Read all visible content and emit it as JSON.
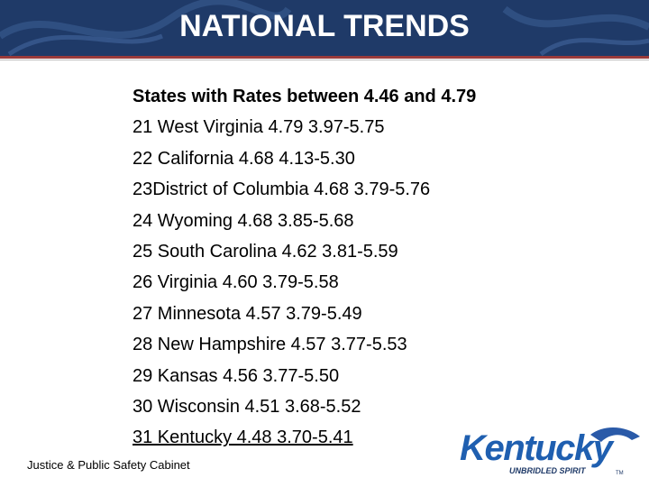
{
  "header": {
    "title": "NATIONAL TRENDS"
  },
  "list": {
    "heading": "States with Rates between 4.46 and 4.79",
    "rows": [
      "21 West Virginia 4.79 3.97-5.75",
      "22 California 4.68 4.13-5.30",
      "23District of Columbia 4.68 3.79-5.76",
      "24 Wyoming 4.68 3.85-5.68",
      "25 South Carolina 4.62 3.81-5.59",
      "26 Virginia 4.60 3.79-5.58",
      "27 Minnesota 4.57 3.79-5.49",
      "28 New Hampshire 4.57 3.77-5.53",
      "29 Kansas 4.56 3.77-5.50",
      "30 Wisconsin 4.51 3.68-5.52",
      "31 Kentucky 4.48 3.70-5.41"
    ]
  },
  "footer": {
    "text": "Justice & Public Safety Cabinet"
  },
  "logo": {
    "name": "Kentucky",
    "tagline": "UNBRIDLED SPIRIT",
    "mark": "TM"
  }
}
